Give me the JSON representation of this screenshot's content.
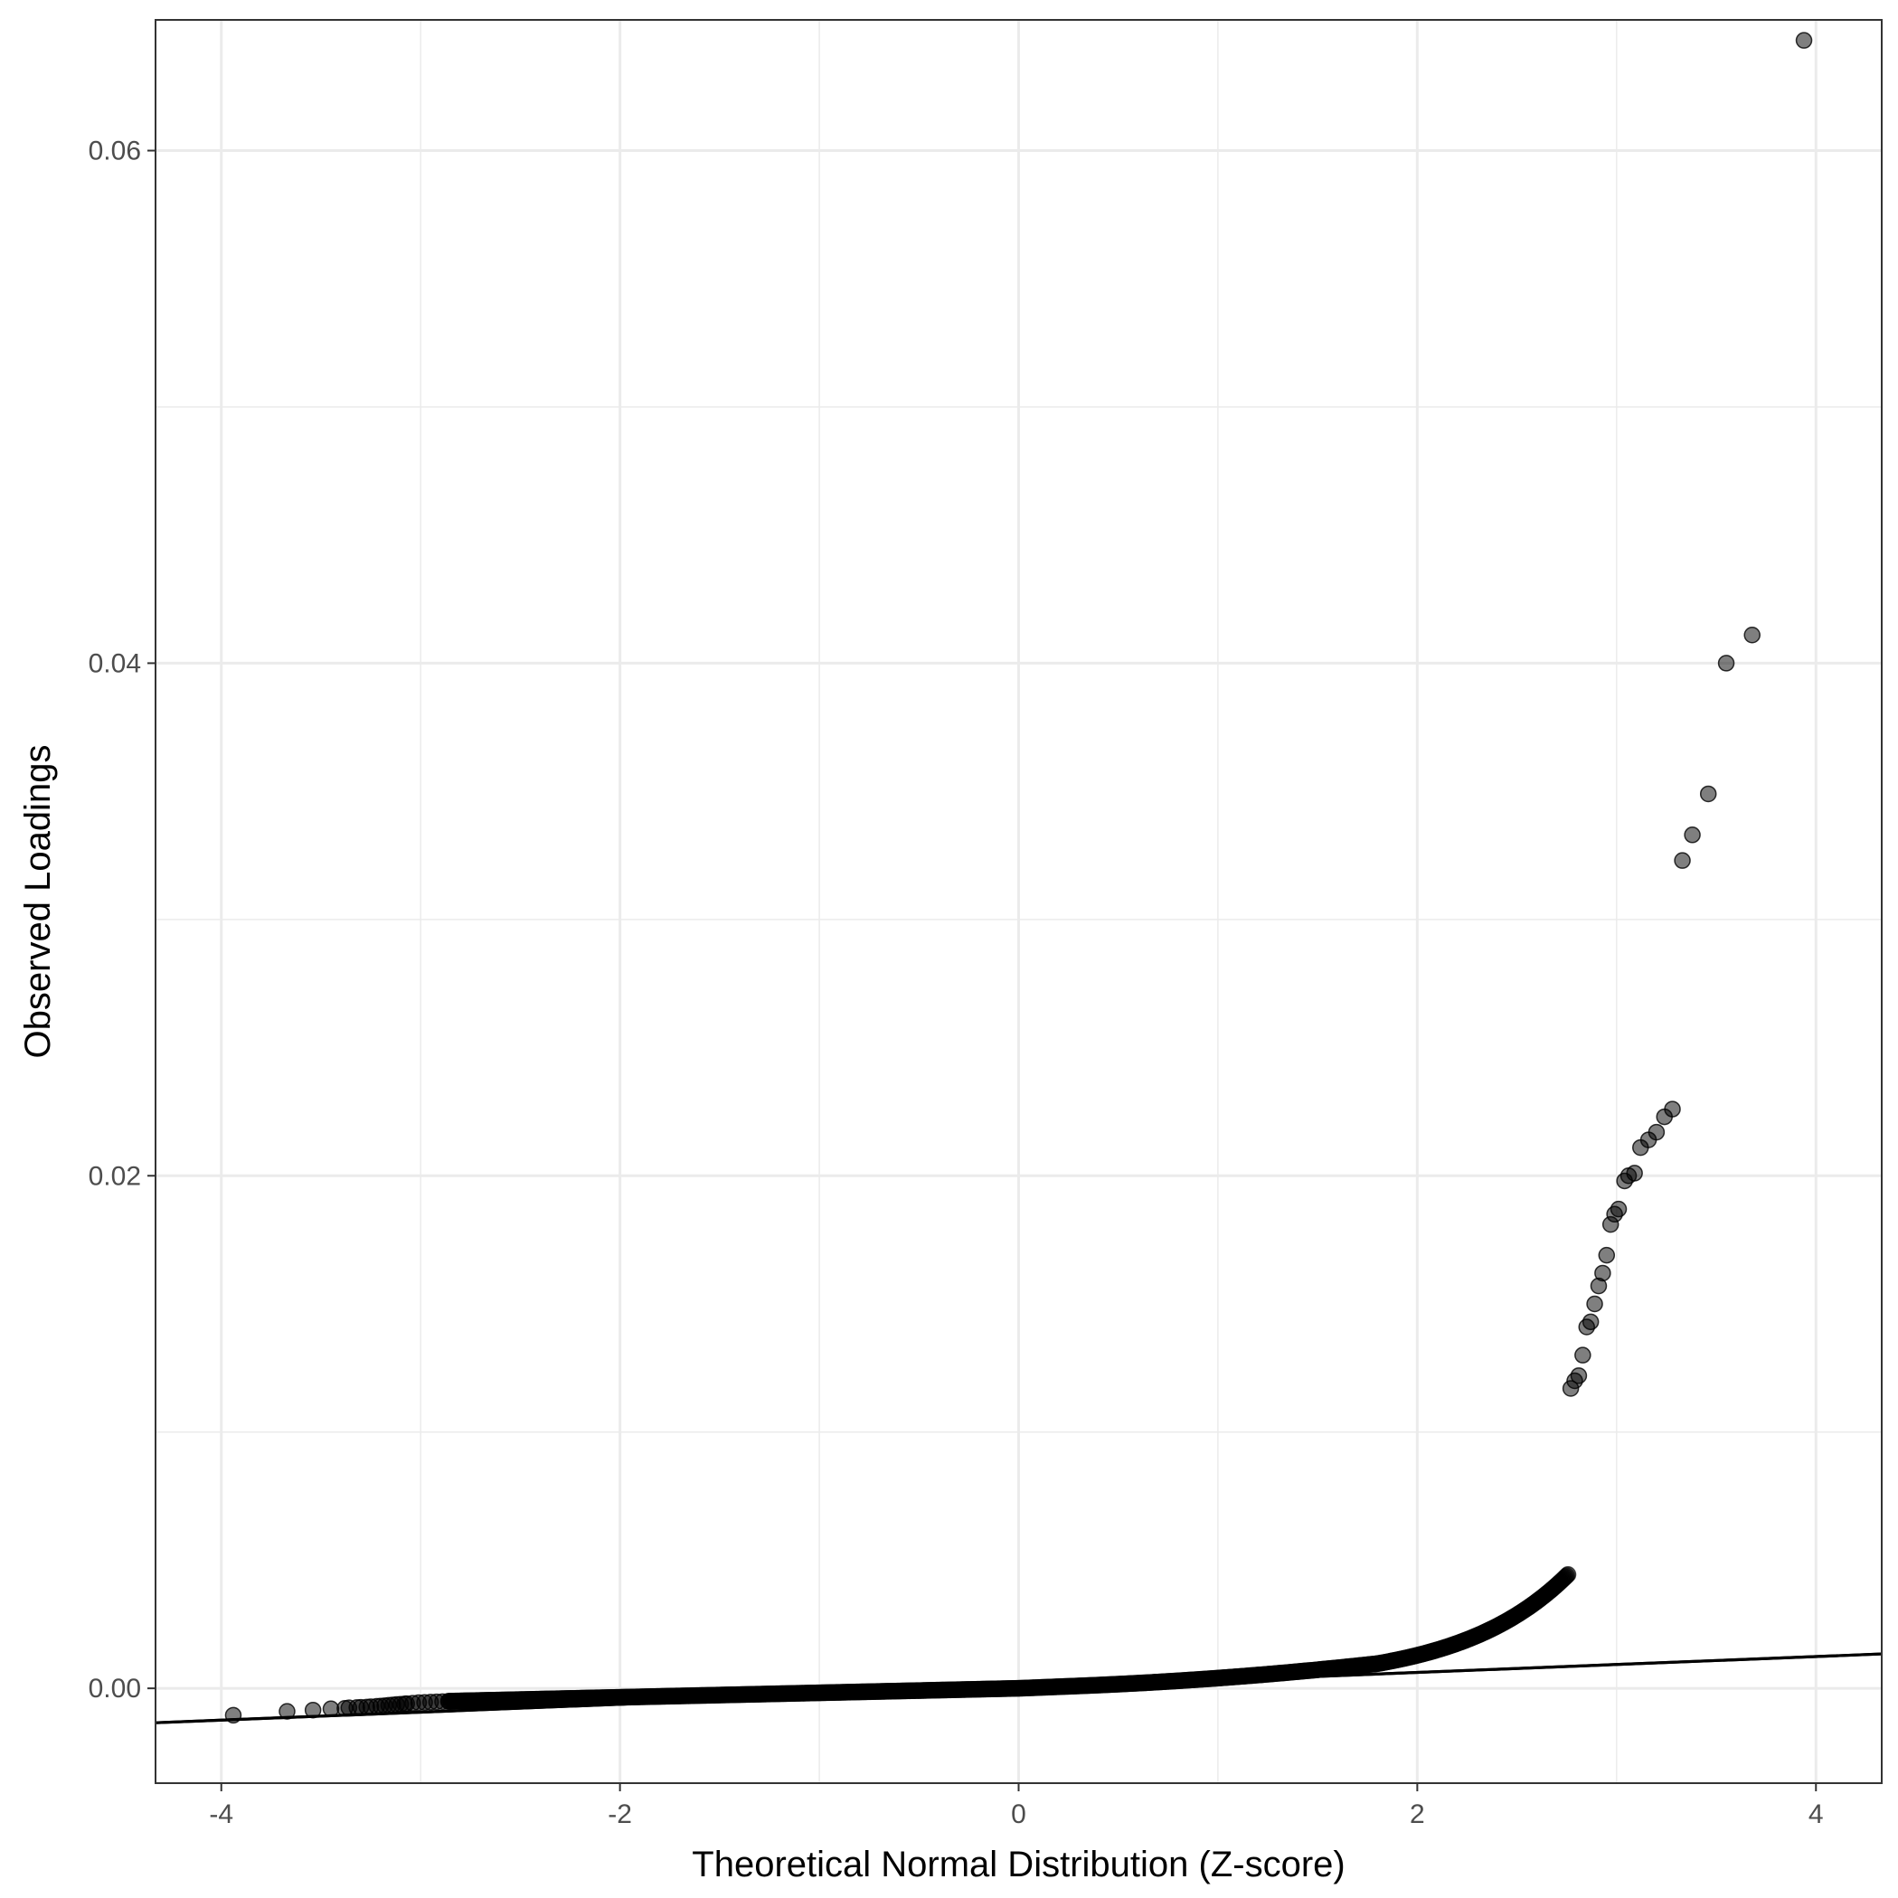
{
  "chart_data": {
    "type": "scatter",
    "title": "",
    "xlabel": "Theoretical Normal Distribution (Z-score)",
    "ylabel": "Observed Loadings",
    "xlim": [
      -4.33,
      4.33
    ],
    "ylim": [
      -0.0037,
      0.0651
    ],
    "x_ticks": [
      -4,
      -2,
      0,
      2,
      4
    ],
    "x_tick_labels": [
      "-4",
      "-2",
      "0",
      "2",
      "4"
    ],
    "y_ticks": [
      0,
      0.02,
      0.04,
      0.06
    ],
    "y_tick_labels": [
      "0.00",
      "0.02",
      "0.04",
      "0.06"
    ],
    "grid": true,
    "theme": "bw",
    "point_color": "#000000",
    "point_alpha": 0.5,
    "reference_line": {
      "intercept": 0.0,
      "slope": 0.00031,
      "color": "#000000"
    },
    "series": [
      {
        "points": [
          [
            -3.94,
            -0.00105
          ],
          [
            -3.67,
            -0.0009
          ],
          [
            -3.54,
            -0.00085
          ],
          [
            -3.45,
            -0.0008
          ],
          [
            -3.38,
            -0.00078
          ],
          [
            -3.32,
            -0.00075
          ],
          [
            -3.27,
            -0.00073
          ],
          [
            -3.22,
            -0.0007
          ],
          [
            -3.18,
            -0.00068
          ],
          [
            -3.14,
            -0.00065
          ],
          [
            -3.1,
            -0.00062
          ],
          [
            -3.07,
            -0.0006
          ],
          [
            -3.04,
            -0.00058
          ],
          [
            -3.01,
            -0.00056
          ],
          [
            -2.98,
            -0.00055
          ],
          [
            -2.95,
            -0.00054
          ],
          [
            -2.92,
            -0.00053
          ],
          [
            -2.89,
            -0.00052
          ],
          [
            -2.86,
            -0.00051
          ],
          [
            -3.36,
            -0.00076
          ],
          [
            -3.3,
            -0.00074
          ],
          [
            -3.25,
            -0.00072
          ],
          [
            -3.2,
            -0.00069
          ],
          [
            -3.16,
            -0.00066
          ],
          [
            -3.12,
            -0.00063
          ],
          [
            -3.08,
            -0.00061
          ],
          [
            3.28,
            0.0226
          ],
          [
            3.33,
            0.0323
          ],
          [
            3.38,
            0.0333
          ],
          [
            3.46,
            0.0349
          ],
          [
            3.55,
            0.04
          ],
          [
            3.68,
            0.0411
          ],
          [
            3.94,
            0.0643
          ],
          [
            3.24,
            0.0223
          ],
          [
            3.2,
            0.0217
          ],
          [
            3.16,
            0.0214
          ],
          [
            3.12,
            0.0211
          ],
          [
            3.09,
            0.0201
          ],
          [
            3.06,
            0.02
          ],
          [
            3.04,
            0.0198
          ],
          [
            3.01,
            0.0187
          ],
          [
            2.99,
            0.0185
          ],
          [
            2.97,
            0.0181
          ],
          [
            2.95,
            0.0169
          ],
          [
            2.93,
            0.0162
          ],
          [
            2.91,
            0.0157
          ],
          [
            2.89,
            0.015
          ],
          [
            2.87,
            0.0143
          ],
          [
            2.85,
            0.0141
          ],
          [
            2.83,
            0.013
          ],
          [
            2.81,
            0.0122
          ],
          [
            2.79,
            0.012
          ],
          [
            2.77,
            0.0117
          ]
        ]
      }
    ]
  }
}
